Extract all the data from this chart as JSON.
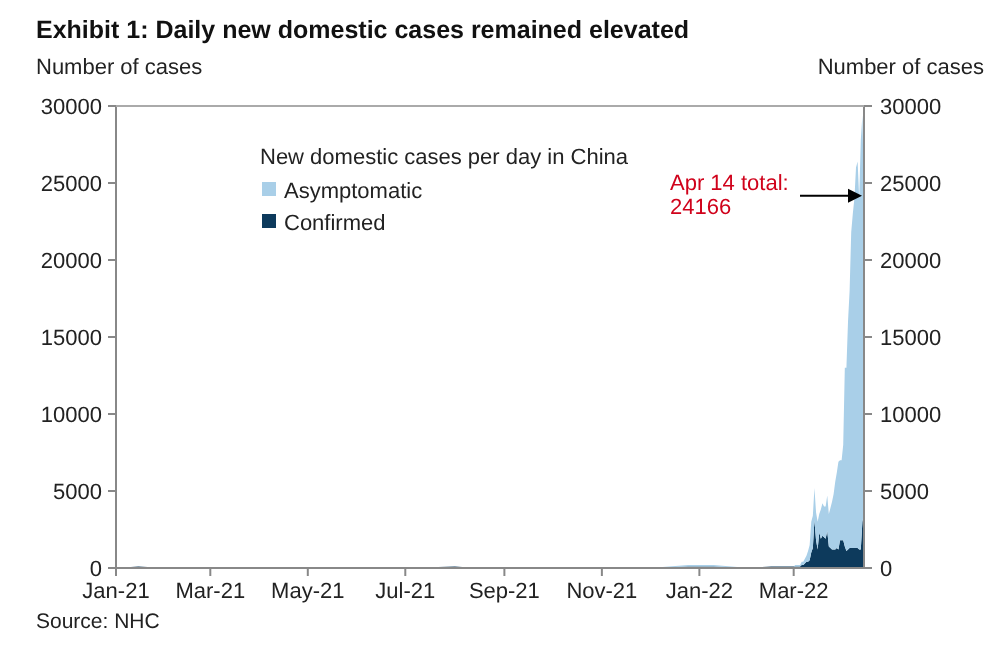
{
  "chart_data": {
    "type": "area",
    "stacked": true,
    "title": "Exhibit 1: Daily new domestic cases remained elevated",
    "ylabel": "Number of cases",
    "y2label": "Number of cases",
    "legend_title": "New domestic cases per day in China",
    "legend": "top",
    "x": [
      "2021-01-01",
      "2021-01-15",
      "2021-02-01",
      "2021-03-01",
      "2021-04-01",
      "2021-05-15",
      "2021-06-01",
      "2021-07-01",
      "2021-08-01",
      "2021-08-15",
      "2021-09-15",
      "2021-10-15",
      "2021-11-01",
      "2021-12-01",
      "2021-12-25",
      "2022-01-10",
      "2022-02-01",
      "2022-02-15",
      "2022-03-01",
      "2022-03-02",
      "2022-03-03",
      "2022-03-04",
      "2022-03-05",
      "2022-03-06",
      "2022-03-07",
      "2022-03-08",
      "2022-03-09",
      "2022-03-10",
      "2022-03-11",
      "2022-03-12",
      "2022-03-13",
      "2022-03-14",
      "2022-03-15",
      "2022-03-16",
      "2022-03-17",
      "2022-03-18",
      "2022-03-19",
      "2022-03-20",
      "2022-03-21",
      "2022-03-22",
      "2022-03-23",
      "2022-03-24",
      "2022-03-25",
      "2022-03-26",
      "2022-03-27",
      "2022-03-28",
      "2022-03-29",
      "2022-03-30",
      "2022-03-31",
      "2022-04-01",
      "2022-04-02",
      "2022-04-03",
      "2022-04-04",
      "2022-04-05",
      "2022-04-06",
      "2022-04-07",
      "2022-04-08",
      "2022-04-09",
      "2022-04-10",
      "2022-04-11",
      "2022-04-12",
      "2022-04-13",
      "2022-04-14"
    ],
    "series": [
      {
        "name": "Confirmed",
        "color": "#0d3a5c",
        "values": [
          0,
          100,
          0,
          0,
          0,
          0,
          0,
          0,
          100,
          0,
          0,
          0,
          0,
          0,
          100,
          100,
          0,
          100,
          100,
          100,
          100,
          100,
          100,
          200,
          200,
          300,
          400,
          400,
          500,
          1000,
          1300,
          3100,
          1800,
          1200,
          2300,
          1900,
          2100,
          2000,
          1900,
          2400,
          1400,
          1300,
          1200,
          1200,
          1200,
          1300,
          1200,
          1800,
          1800,
          1800,
          1400,
          1100,
          1200,
          1300,
          1300,
          1300,
          1300,
          1300,
          1300,
          1200,
          1200,
          3000,
          3500
        ]
      },
      {
        "name": "Asymptomatic",
        "color": "#a9cfe8",
        "values": [
          0,
          0,
          0,
          0,
          0,
          0,
          0,
          0,
          0,
          0,
          0,
          0,
          0,
          0,
          100,
          100,
          0,
          0,
          0,
          100,
          100,
          100,
          100,
          200,
          200,
          300,
          400,
          700,
          1000,
          2000,
          2100,
          2100,
          1800,
          1800,
          1200,
          1900,
          2100,
          2000,
          2100,
          2300,
          2100,
          2600,
          3100,
          3600,
          4400,
          4900,
          5700,
          5200,
          5200,
          6200,
          11600,
          11900,
          14800,
          16700,
          20500,
          21700,
          22700,
          24700,
          25100,
          22800,
          26600,
          26400,
          20666
        ]
      }
    ],
    "xlim": [
      "2021-01-01",
      "2022-04-14"
    ],
    "xticks": [
      {
        "value": "2021-01-01",
        "label": "Jan-21"
      },
      {
        "value": "2021-03-01",
        "label": "Mar-21"
      },
      {
        "value": "2021-05-01",
        "label": "May-21"
      },
      {
        "value": "2021-07-01",
        "label": "Jul-21"
      },
      {
        "value": "2021-09-01",
        "label": "Sep-21"
      },
      {
        "value": "2021-11-01",
        "label": "Nov-21"
      },
      {
        "value": "2022-01-01",
        "label": "Jan-22"
      },
      {
        "value": "2022-03-01",
        "label": "Mar-22"
      }
    ],
    "ylim": [
      0,
      30000
    ],
    "yticks": [
      0,
      5000,
      10000,
      15000,
      20000,
      25000,
      30000
    ],
    "y2lim": [
      0,
      30000
    ],
    "y2ticks": [
      0,
      5000,
      10000,
      15000,
      20000,
      25000,
      30000
    ],
    "annotations": [
      {
        "text": "Apr 14 total: 24166",
        "x": "2022-04-14",
        "y": 24166
      },
      "Source: NHC"
    ]
  }
}
